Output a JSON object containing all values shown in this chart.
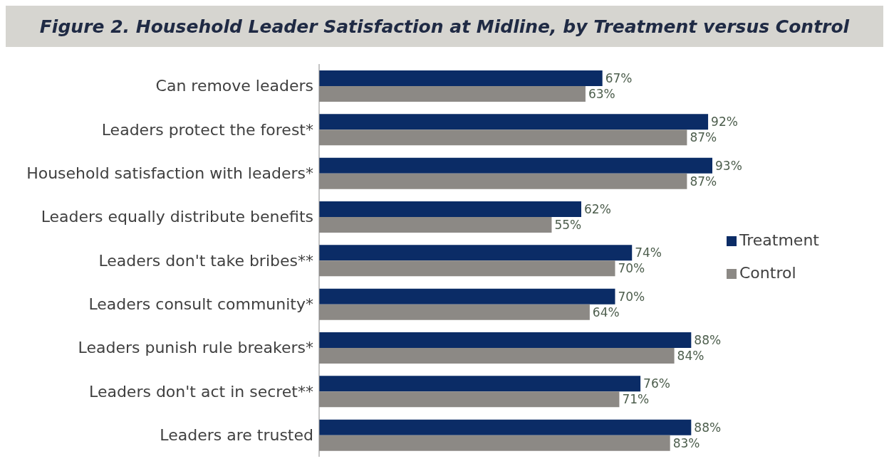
{
  "chart_data": {
    "type": "bar",
    "orientation": "horizontal",
    "title": "Figure 2. Household Leader Satisfaction at Midline, by Treatment versus Control",
    "categories": [
      "Can remove leaders",
      "Leaders protect the forest*",
      "Household satisfaction with leaders*",
      "Leaders equally distribute benefits",
      "Leaders don't take bribes**",
      "Leaders consult community*",
      "Leaders punish rule breakers*",
      "Leaders don't act in secret**",
      "Leaders are trusted"
    ],
    "series": [
      {
        "name": "Treatment",
        "color": "#0b2c66",
        "values": [
          67,
          92,
          93,
          62,
          74,
          70,
          88,
          76,
          88
        ],
        "value_labels": [
          "67%",
          "92%",
          "93%",
          "62%",
          "74%",
          "70%",
          "88%",
          "76%",
          "88%"
        ]
      },
      {
        "name": "Control",
        "color": "#8c8985",
        "values": [
          63,
          87,
          87,
          55,
          70,
          64,
          84,
          71,
          83
        ],
        "value_labels": [
          "63%",
          "87%",
          "87%",
          "55%",
          "70%",
          "64%",
          "84%",
          "71%",
          "83%"
        ]
      }
    ],
    "legend": "right",
    "tick_labels": "y"
  }
}
